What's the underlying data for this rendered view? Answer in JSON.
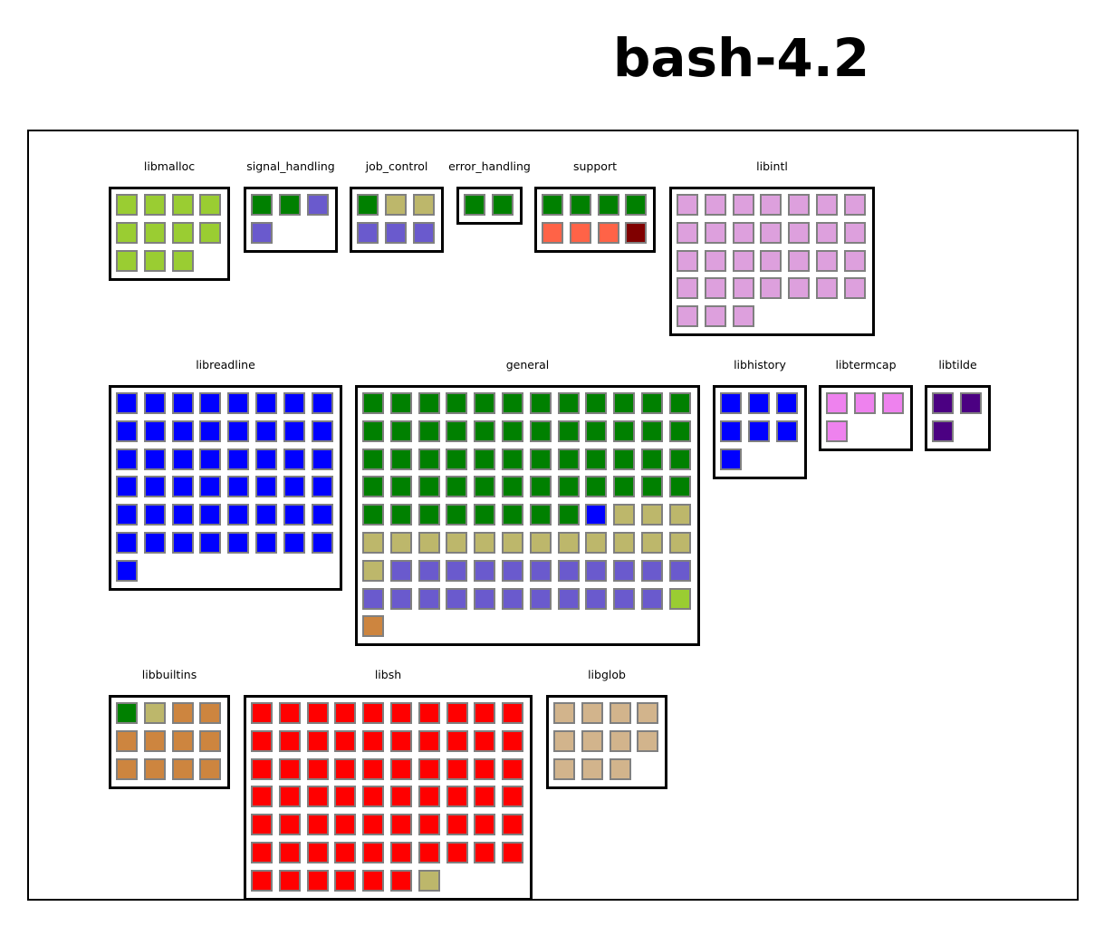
{
  "title": "bash-4.2",
  "colors": {
    "yellowgreen": "#9acd32",
    "green": "#008000",
    "slateblue": "#6a5acd",
    "darkkhaki": "#bdb76b",
    "tomato": "#ff6347",
    "maroon": "#800000",
    "plum": "#dda0dd",
    "blue": "#0000ff",
    "violet": "#ee82ee",
    "indigo": "#4b0082",
    "peru": "#cd853f",
    "red": "#ff0000",
    "tan": "#d2b48c"
  },
  "groups": [
    {
      "id": "libmalloc",
      "label": "libmalloc",
      "cols": 4,
      "cells": [
        [
          "yellowgreen",
          11
        ]
      ]
    },
    {
      "id": "signal_handling",
      "label": "signal_handling",
      "cols": 3,
      "cells": [
        [
          "green",
          2
        ],
        [
          "slateblue",
          2
        ]
      ]
    },
    {
      "id": "job_control",
      "label": "job_control",
      "cols": 3,
      "cells": [
        [
          "green",
          1
        ],
        [
          "darkkhaki",
          2
        ],
        [
          "slateblue",
          3
        ]
      ]
    },
    {
      "id": "error_handling",
      "label": "error_handling",
      "cols": 2,
      "cells": [
        [
          "green",
          2
        ]
      ]
    },
    {
      "id": "support",
      "label": "support",
      "cols": 4,
      "cells": [
        [
          "green",
          4
        ],
        [
          "tomato",
          3
        ],
        [
          "maroon",
          1
        ]
      ]
    },
    {
      "id": "libintl",
      "label": "libintl",
      "cols": 7,
      "cells": [
        [
          "plum",
          31
        ]
      ]
    },
    {
      "id": "libreadline",
      "label": "libreadline",
      "cols": 8,
      "cells": [
        [
          "blue",
          49
        ]
      ]
    },
    {
      "id": "general",
      "label": "general",
      "cols": 12,
      "cells": [
        [
          "green",
          56
        ],
        [
          "blue",
          1
        ],
        [
          "darkkhaki",
          16
        ],
        [
          "slateblue",
          22
        ],
        [
          "yellowgreen",
          1
        ],
        [
          "peru",
          1
        ]
      ]
    },
    {
      "id": "libhistory",
      "label": "libhistory",
      "cols": 3,
      "cells": [
        [
          "blue",
          7
        ]
      ]
    },
    {
      "id": "libtermcap",
      "label": "libtermcap",
      "cols": 3,
      "cells": [
        [
          "violet",
          4
        ]
      ]
    },
    {
      "id": "libtilde",
      "label": "libtilde",
      "cols": 2,
      "cells": [
        [
          "indigo",
          3
        ]
      ]
    },
    {
      "id": "libbuiltins",
      "label": "libbuiltins",
      "cols": 4,
      "cells": [
        [
          "green",
          1
        ],
        [
          "darkkhaki",
          1
        ],
        [
          "peru",
          10
        ]
      ]
    },
    {
      "id": "libsh",
      "label": "libsh",
      "cols": 10,
      "cells": [
        [
          "red",
          66
        ],
        [
          "darkkhaki",
          1
        ]
      ]
    },
    {
      "id": "libglob",
      "label": "libglob",
      "cols": 4,
      "cells": [
        [
          "tan",
          11
        ]
      ]
    }
  ]
}
